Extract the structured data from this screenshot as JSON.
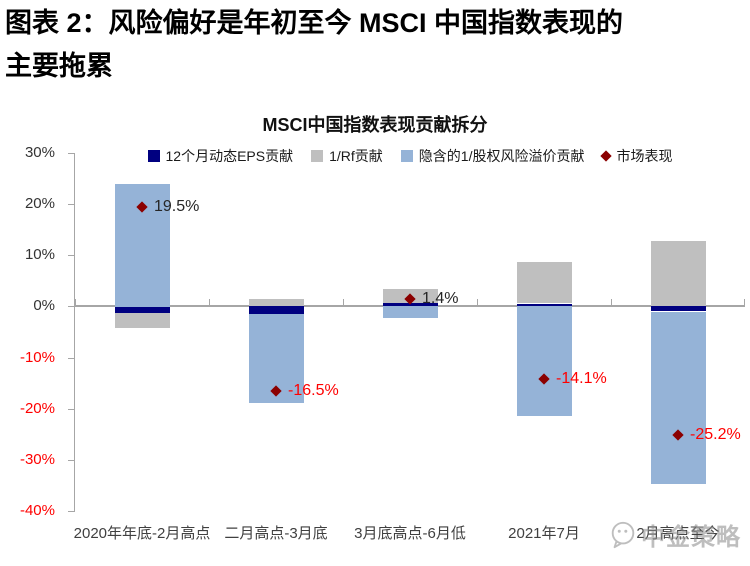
{
  "figure": {
    "caption_line1": "图表 2：风险偏好是年初至今 MSCI 中国指数表现的",
    "caption_line2": "主要拖累",
    "source_watermark": "中金策略"
  },
  "chart_data": {
    "type": "bar",
    "stacked": true,
    "title": "MSCI中国指数表现贡献拆分",
    "categories": [
      "2020年年底-2月高点",
      "二月高点-3月底",
      "3月底高点-6月低",
      "2021年7月",
      "2月高点至今"
    ],
    "series": [
      {
        "name": "12个月动态EPS贡献",
        "color": "#000080",
        "values": [
          -1.3,
          -1.5,
          0.8,
          0.5,
          -1.0
        ]
      },
      {
        "name": "1/Rf贡献",
        "color": "#BFBFBF",
        "values": [
          -2.9,
          1.4,
          2.7,
          8.1,
          12.8
        ]
      },
      {
        "name": "隐含的1/股权风险溢价贡献",
        "color": "#95B3D7",
        "values": [
          24.0,
          -17.4,
          -2.3,
          -21.6,
          -33.6
        ]
      }
    ],
    "market_series": {
      "name": "市场表现",
      "marker": "diamond",
      "color": "#8B0000",
      "values": [
        19.5,
        -16.5,
        1.4,
        -14.1,
        -25.2
      ],
      "labels": [
        "19.5%",
        "-16.5%",
        "1.4%",
        "-14.1%",
        "-25.2%"
      ]
    },
    "ylim": [
      -40,
      30
    ],
    "ytick_step": 10,
    "ytick_labels": [
      "30%",
      "20%",
      "10%",
      "0%",
      "-10%",
      "-20%",
      "-30%",
      "-40%"
    ],
    "positive_tick_color": "#333333",
    "negative_tick_color": "#FF0000",
    "negative_label_color": "#FF0000",
    "positive_label_color": "#262626",
    "axis_color": "#A6A6A6",
    "grid": false,
    "legend_position": "top"
  }
}
